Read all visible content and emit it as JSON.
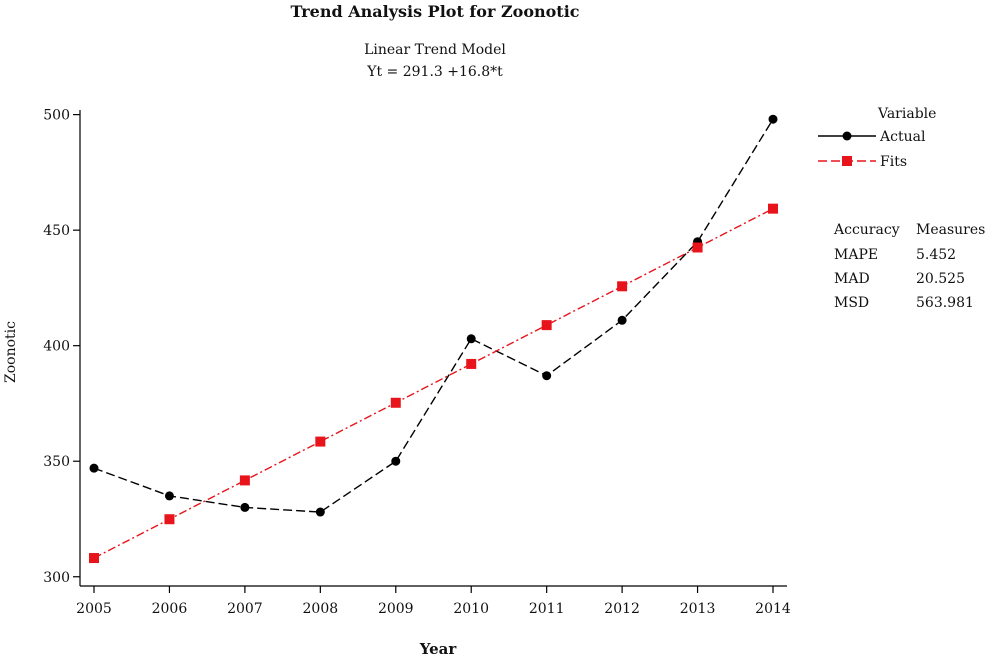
{
  "chart_data": {
    "type": "line",
    "title": "Trend Analysis Plot for Zoonotic",
    "subtitle_line1": "Linear Trend Model",
    "subtitle_line2": "Yt = 291.3 +16.8*t",
    "xlabel": "Year",
    "ylabel": "Zoonotic",
    "x_tick_labels": [
      "2005",
      "2006",
      "2007",
      "2008",
      "2009",
      "2010",
      "2011",
      "2012",
      "2013",
      "2014"
    ],
    "y_ticks": [
      300,
      350,
      400,
      450,
      500
    ],
    "y_tick_labels": [
      "300",
      "350",
      "400",
      "450",
      "500"
    ],
    "ylim": [
      296,
      502
    ],
    "grid": false,
    "series": [
      {
        "name": "Actual",
        "color": "#000000",
        "marker": "circle",
        "line_style": "dashed",
        "values": [
          347,
          335,
          330,
          328,
          350,
          403,
          387,
          411,
          445,
          498
        ]
      },
      {
        "name": "Fits",
        "color": "#e8141b",
        "marker": "square",
        "line_style": "dashed",
        "values": [
          308.1,
          324.9,
          341.7,
          358.5,
          375.3,
          392.1,
          408.9,
          425.7,
          442.5,
          459.3
        ]
      }
    ],
    "legend": {
      "title": "Variable",
      "placement": "right",
      "entries": [
        "Actual",
        "Fits"
      ]
    },
    "accuracy": {
      "header_left": "Accuracy",
      "header_right": "Measures",
      "rows": [
        {
          "label": "MAPE",
          "value": "5.452"
        },
        {
          "label": "MAD",
          "value": "20.525"
        },
        {
          "label": "MSD",
          "value": "563.981"
        }
      ]
    }
  }
}
